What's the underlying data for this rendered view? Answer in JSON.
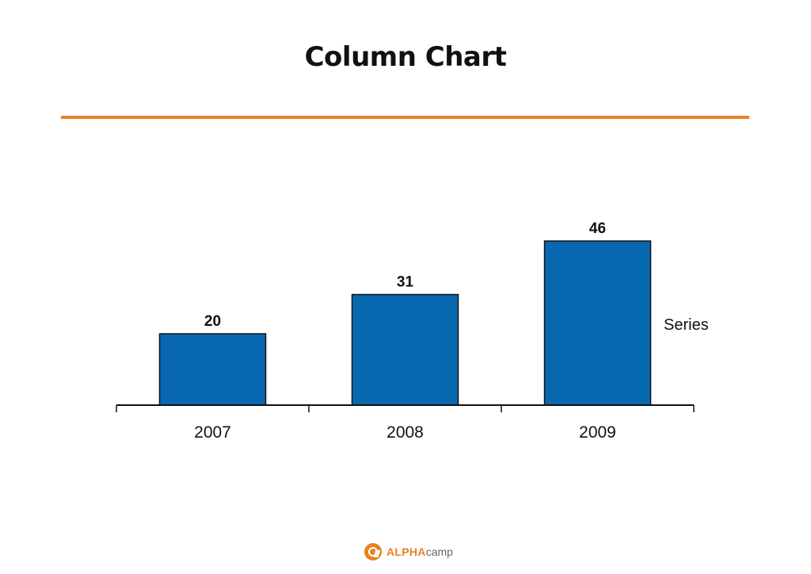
{
  "slide": {
    "title": "Column Chart"
  },
  "chart_data": {
    "type": "bar",
    "categories": [
      "2007",
      "2008",
      "2009"
    ],
    "series": [
      {
        "name": "Series",
        "values": [
          20,
          31,
          46
        ]
      }
    ],
    "ylim": [
      0,
      50
    ],
    "grid": false,
    "legend": "right",
    "data_labels": true,
    "bar_color": "#0868b0"
  },
  "footer": {
    "logo_alpha": "ALPHA",
    "logo_camp": "camp"
  },
  "colors": {
    "accent": "#e8821e"
  }
}
